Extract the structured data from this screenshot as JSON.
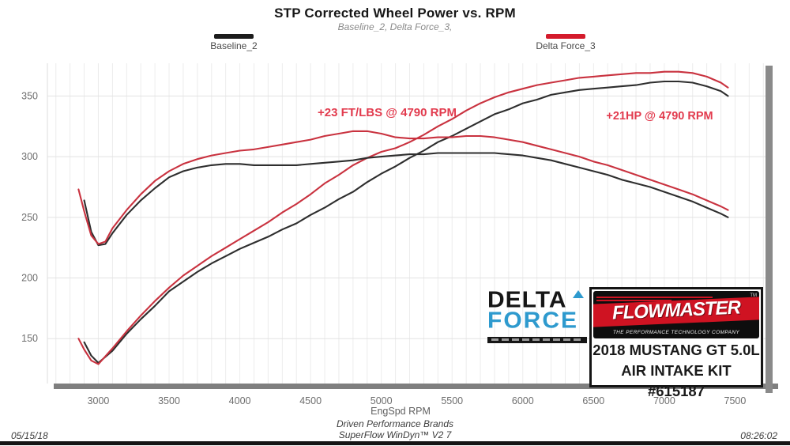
{
  "header": {
    "title": "STP Corrected Wheel Power vs. RPM",
    "subtitle": "Baseline_2, Delta Force_3,"
  },
  "legend": [
    {
      "label": "Baseline_2",
      "color": "#1c1c1c"
    },
    {
      "label": "Delta Force_3",
      "color": "#d41b2c"
    }
  ],
  "annotations": [
    {
      "text": "+23 FT/LBS @ 4790 RPM"
    },
    {
      "text": "+21HP @ 4790 RPM"
    }
  ],
  "branding": {
    "delta_force": {
      "line1": "DELTA",
      "line2": "FORCE"
    },
    "flowmaster": {
      "name": "FLOWMASTER",
      "tm": "TM",
      "tagline": "THE PERFORMANCE TECHNOLOGY COMPANY"
    },
    "vehicle_line1": "2018 MUSTANG GT 5.0L",
    "vehicle_line2": "AIR INTAKE KIT #615187"
  },
  "footer": {
    "date": "05/15/18",
    "center_line1": "Driven Performance Brands",
    "center_line2": "SuperFlow WinDyn™ V2 7",
    "time": "08:26:02"
  },
  "chart_data": {
    "type": "line",
    "title": "STP Corrected Wheel Power vs. RPM",
    "xlabel": "EngSpd  RPM",
    "ylabel": "",
    "xlim": [
      2640,
      7760
    ],
    "ylim": [
      113,
      377
    ],
    "x_ticks": [
      3000,
      3500,
      4000,
      4500,
      5000,
      5500,
      6000,
      6500,
      7000,
      7500
    ],
    "y_ticks": [
      150,
      200,
      250,
      300,
      350
    ],
    "x_grid_step": 100,
    "y_grid_step": 50,
    "grid": true,
    "legend_position": "top",
    "series": [
      {
        "name": "Baseline_2 Power (HP)",
        "color": "#2e2e2e",
        "points": [
          [
            2900,
            147
          ],
          [
            2950,
            136
          ],
          [
            3000,
            130
          ],
          [
            3100,
            140
          ],
          [
            3200,
            154
          ],
          [
            3300,
            166
          ],
          [
            3400,
            177
          ],
          [
            3500,
            189
          ],
          [
            3600,
            197
          ],
          [
            3700,
            205
          ],
          [
            3800,
            212
          ],
          [
            3900,
            218
          ],
          [
            4000,
            224
          ],
          [
            4100,
            229
          ],
          [
            4200,
            234
          ],
          [
            4300,
            240
          ],
          [
            4400,
            245
          ],
          [
            4500,
            252
          ],
          [
            4600,
            258
          ],
          [
            4700,
            265
          ],
          [
            4800,
            271
          ],
          [
            4900,
            279
          ],
          [
            5000,
            286
          ],
          [
            5100,
            292
          ],
          [
            5200,
            299
          ],
          [
            5300,
            305
          ],
          [
            5400,
            312
          ],
          [
            5500,
            317
          ],
          [
            5600,
            323
          ],
          [
            5700,
            329
          ],
          [
            5800,
            335
          ],
          [
            5900,
            339
          ],
          [
            6000,
            344
          ],
          [
            6100,
            347
          ],
          [
            6200,
            351
          ],
          [
            6300,
            353
          ],
          [
            6400,
            355
          ],
          [
            6500,
            356
          ],
          [
            6600,
            357
          ],
          [
            6700,
            358
          ],
          [
            6800,
            359
          ],
          [
            6900,
            361
          ],
          [
            7000,
            362
          ],
          [
            7100,
            362
          ],
          [
            7200,
            361
          ],
          [
            7300,
            358
          ],
          [
            7400,
            354
          ],
          [
            7450,
            350
          ]
        ]
      },
      {
        "name": "Delta Force_3 Power (HP)",
        "color": "#c9323f",
        "points": [
          [
            2860,
            150
          ],
          [
            2900,
            141
          ],
          [
            2950,
            132
          ],
          [
            3000,
            129
          ],
          [
            3100,
            142
          ],
          [
            3200,
            156
          ],
          [
            3300,
            169
          ],
          [
            3400,
            181
          ],
          [
            3500,
            192
          ],
          [
            3600,
            202
          ],
          [
            3700,
            210
          ],
          [
            3800,
            218
          ],
          [
            3900,
            225
          ],
          [
            4000,
            232
          ],
          [
            4100,
            239
          ],
          [
            4200,
            246
          ],
          [
            4300,
            254
          ],
          [
            4400,
            261
          ],
          [
            4500,
            269
          ],
          [
            4600,
            278
          ],
          [
            4700,
            285
          ],
          [
            4800,
            293
          ],
          [
            4900,
            299
          ],
          [
            5000,
            304
          ],
          [
            5100,
            307
          ],
          [
            5200,
            312
          ],
          [
            5300,
            318
          ],
          [
            5400,
            325
          ],
          [
            5500,
            331
          ],
          [
            5600,
            338
          ],
          [
            5700,
            344
          ],
          [
            5800,
            349
          ],
          [
            5900,
            353
          ],
          [
            6000,
            356
          ],
          [
            6100,
            359
          ],
          [
            6200,
            361
          ],
          [
            6300,
            363
          ],
          [
            6400,
            365
          ],
          [
            6500,
            366
          ],
          [
            6600,
            367
          ],
          [
            6700,
            368
          ],
          [
            6800,
            369
          ],
          [
            6900,
            369
          ],
          [
            7000,
            370
          ],
          [
            7100,
            370
          ],
          [
            7200,
            369
          ],
          [
            7300,
            366
          ],
          [
            7400,
            361
          ],
          [
            7450,
            357
          ]
        ]
      },
      {
        "name": "Baseline_2 Torque (FT/LBS)",
        "color": "#2e2e2e",
        "points": [
          [
            2900,
            264
          ],
          [
            2950,
            238
          ],
          [
            3000,
            227
          ],
          [
            3050,
            228
          ],
          [
            3100,
            237
          ],
          [
            3200,
            252
          ],
          [
            3300,
            264
          ],
          [
            3400,
            274
          ],
          [
            3500,
            283
          ],
          [
            3600,
            288
          ],
          [
            3700,
            291
          ],
          [
            3800,
            293
          ],
          [
            3900,
            294
          ],
          [
            4000,
            294
          ],
          [
            4100,
            293
          ],
          [
            4200,
            293
          ],
          [
            4300,
            293
          ],
          [
            4400,
            293
          ],
          [
            4500,
            294
          ],
          [
            4600,
            295
          ],
          [
            4700,
            296
          ],
          [
            4800,
            297
          ],
          [
            4900,
            299
          ],
          [
            5000,
            300
          ],
          [
            5100,
            301
          ],
          [
            5200,
            302
          ],
          [
            5300,
            302
          ],
          [
            5400,
            303
          ],
          [
            5500,
            303
          ],
          [
            5600,
            303
          ],
          [
            5700,
            303
          ],
          [
            5800,
            303
          ],
          [
            5900,
            302
          ],
          [
            6000,
            301
          ],
          [
            6100,
            299
          ],
          [
            6200,
            297
          ],
          [
            6300,
            294
          ],
          [
            6400,
            291
          ],
          [
            6500,
            288
          ],
          [
            6600,
            285
          ],
          [
            6700,
            281
          ],
          [
            6800,
            278
          ],
          [
            6900,
            275
          ],
          [
            7000,
            271
          ],
          [
            7100,
            267
          ],
          [
            7200,
            263
          ],
          [
            7300,
            258
          ],
          [
            7400,
            253
          ],
          [
            7450,
            250
          ]
        ]
      },
      {
        "name": "Delta Force_3 Torque (FT/LBS)",
        "color": "#c9323f",
        "points": [
          [
            2860,
            273
          ],
          [
            2900,
            255
          ],
          [
            2950,
            235
          ],
          [
            3000,
            228
          ],
          [
            3050,
            230
          ],
          [
            3100,
            241
          ],
          [
            3200,
            256
          ],
          [
            3300,
            269
          ],
          [
            3400,
            280
          ],
          [
            3500,
            288
          ],
          [
            3600,
            294
          ],
          [
            3700,
            298
          ],
          [
            3800,
            301
          ],
          [
            3900,
            303
          ],
          [
            4000,
            305
          ],
          [
            4100,
            306
          ],
          [
            4200,
            308
          ],
          [
            4300,
            310
          ],
          [
            4400,
            312
          ],
          [
            4500,
            314
          ],
          [
            4600,
            317
          ],
          [
            4700,
            319
          ],
          [
            4800,
            321
          ],
          [
            4900,
            321
          ],
          [
            5000,
            319
          ],
          [
            5100,
            316
          ],
          [
            5200,
            315
          ],
          [
            5300,
            315
          ],
          [
            5400,
            316
          ],
          [
            5500,
            316
          ],
          [
            5600,
            317
          ],
          [
            5700,
            317
          ],
          [
            5800,
            316
          ],
          [
            5900,
            314
          ],
          [
            6000,
            312
          ],
          [
            6100,
            309
          ],
          [
            6200,
            306
          ],
          [
            6300,
            303
          ],
          [
            6400,
            300
          ],
          [
            6500,
            296
          ],
          [
            6600,
            293
          ],
          [
            6700,
            289
          ],
          [
            6800,
            285
          ],
          [
            6900,
            281
          ],
          [
            7000,
            277
          ],
          [
            7100,
            273
          ],
          [
            7200,
            269
          ],
          [
            7300,
            264
          ],
          [
            7400,
            259
          ],
          [
            7450,
            256
          ]
        ]
      }
    ]
  }
}
